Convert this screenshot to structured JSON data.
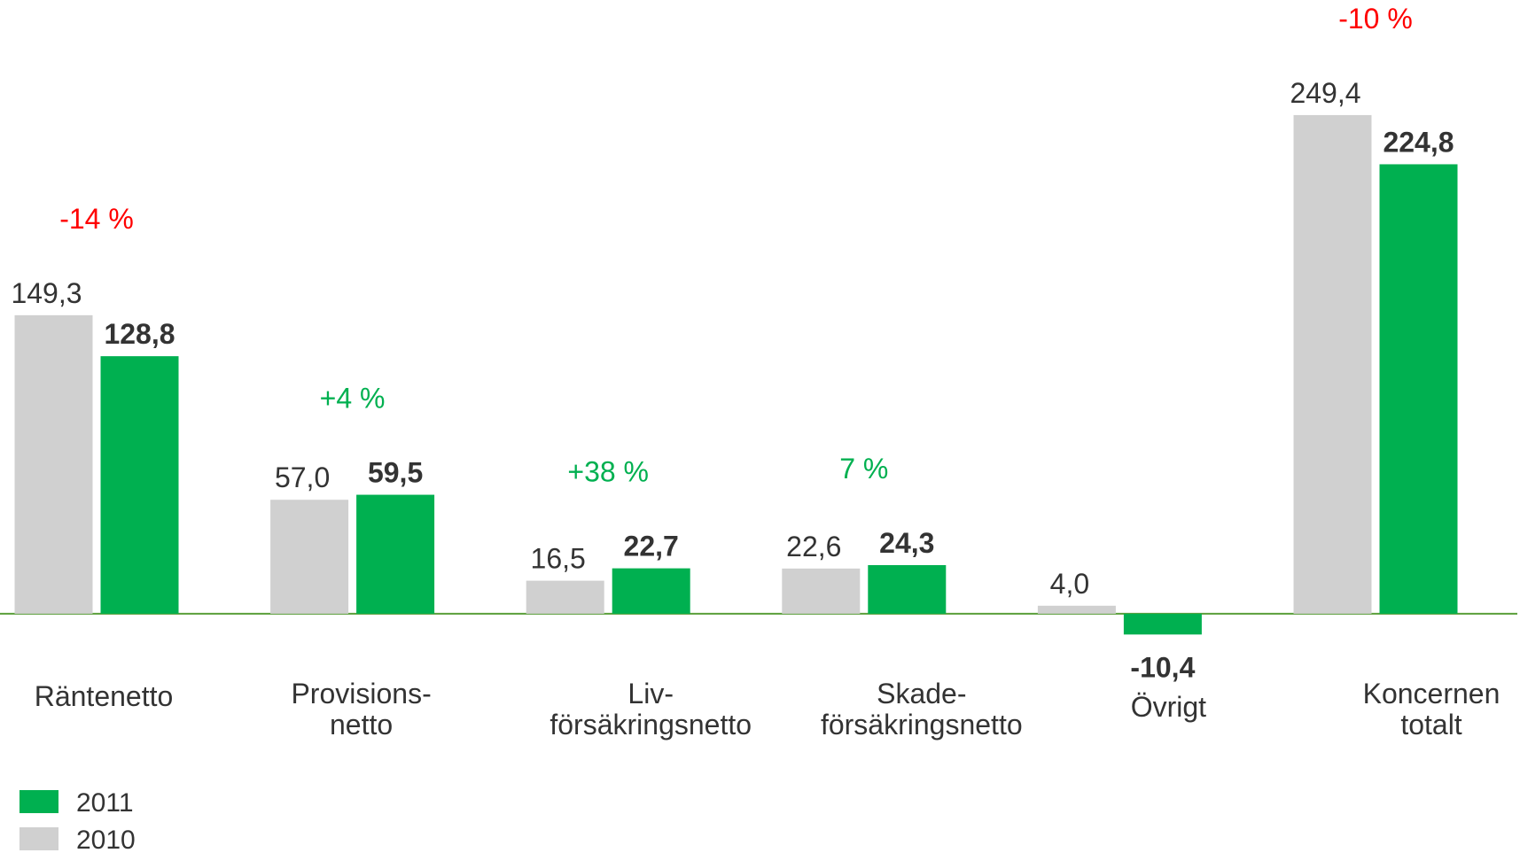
{
  "chart_data": {
    "type": "bar",
    "categories": [
      [
        "Räntenetto"
      ],
      [
        "Provisions-",
        "netto"
      ],
      [
        "Liv-",
        "försäkringsnetto"
      ],
      [
        "Skade-",
        "försäkringsnetto"
      ],
      [
        "Övrigt"
      ],
      [
        "Koncernen",
        "totalt"
      ]
    ],
    "series": [
      {
        "name": "2010",
        "color": "#d0d0d0",
        "values": [
          149.3,
          57.0,
          16.5,
          22.6,
          4.0,
          249.4
        ],
        "value_labels": [
          "149,3",
          "57,0",
          "16,5",
          "22,6",
          "4,0",
          "249,4"
        ]
      },
      {
        "name": "2011",
        "color": "#00b050",
        "values": [
          128.8,
          59.5,
          22.7,
          24.3,
          -10.4,
          224.8
        ],
        "value_labels": [
          "128,8",
          "59,5",
          "22,7",
          "24,3",
          "-10,4",
          "224,8"
        ]
      }
    ],
    "changes": [
      "-14 %",
      "+4 %",
      "+38 %",
      "7 %",
      null,
      "-10 %"
    ],
    "change_colors": [
      "#ff0000",
      "#00b050",
      "#00b050",
      "#00b050",
      null,
      "#ff0000"
    ],
    "ylim": [
      -20,
      260
    ],
    "baseline_color": "#5a9e3a"
  }
}
